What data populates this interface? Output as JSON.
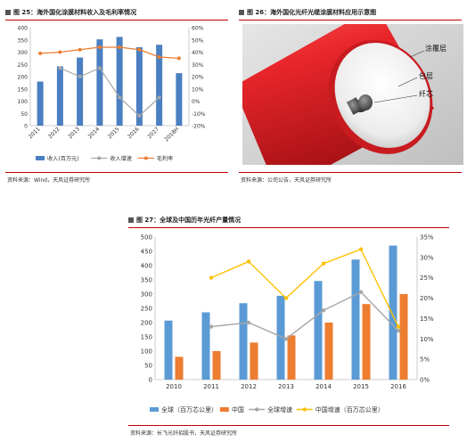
{
  "fig25": {
    "title": "图 25：海外国化涂膜材料收入及毛利率情况",
    "source": "资料来源：Wind，天风证券研究所"
  },
  "fig26": {
    "title": "图 26：海外国化光纤光缆涂膜材料应用示意图",
    "source": "资料来源：公司公告，天风证券研究所",
    "labels": {
      "coating": "涂覆层",
      "cladding": "包层",
      "core": "纤芯"
    },
    "colors": {
      "coating": "#e8262b",
      "cladding": "#f2f2f2",
      "core": "#6a6a6a",
      "background": "#d4d4d4"
    }
  },
  "fig27": {
    "title": "图 27：全球及中国历年光纤产量情况",
    "source": "资料来源：长飞光纤招股书，天风证券研究所"
  },
  "chart_data": [
    {
      "type": "bar",
      "categories": [
        "2011",
        "2012",
        "2013",
        "2014",
        "2015",
        "2016",
        "2017",
        "2018H"
      ],
      "series": [
        {
          "name": "收入(百万元)",
          "kind": "bar",
          "axis": "left",
          "color": "#4a7fc1",
          "values": [
            180,
            242,
            278,
            352,
            362,
            320,
            330,
            214
          ]
        },
        {
          "name": "收入增速",
          "kind": "line",
          "axis": "right",
          "color": "#a6a6a6",
          "values": [
            null,
            0.27,
            0.2,
            0.27,
            0.03,
            -0.12,
            0.03,
            null
          ]
        },
        {
          "name": "毛利率",
          "kind": "line",
          "axis": "right",
          "color": "#ed7d31",
          "values": [
            0.39,
            0.4,
            0.42,
            0.44,
            0.44,
            0.42,
            0.36,
            0.35
          ]
        }
      ],
      "yticks": [
        "0",
        "50",
        "100",
        "150",
        "200",
        "250",
        "300",
        "350",
        "400"
      ],
      "y2ticks": [
        "-20%",
        "-10%",
        "0%",
        "10%",
        "20%",
        "30%",
        "40%",
        "50%",
        "60%"
      ],
      "ylim": [
        0,
        400
      ],
      "y2lim": [
        -0.2,
        0.6
      ],
      "legend": "bottom",
      "grid": false
    },
    {
      "type": "bar",
      "categories": [
        "2010",
        "2011",
        "2012",
        "2013",
        "2014",
        "2015",
        "2016"
      ],
      "series": [
        {
          "name": "全球（百万芯公里）",
          "kind": "bar",
          "axis": "left",
          "color": "#5b9bd5",
          "values": [
            207,
            236,
            268,
            294,
            346,
            421,
            470
          ]
        },
        {
          "name": "中国",
          "kind": "bar",
          "axis": "left",
          "color": "#ed7d31",
          "values": [
            80,
            100,
            130,
            155,
            200,
            265,
            300
          ]
        },
        {
          "name": "全球增速",
          "kind": "line",
          "axis": "right",
          "color": "#a6a6a6",
          "values": [
            null,
            0.13,
            0.14,
            0.1,
            0.17,
            0.215,
            0.12
          ]
        },
        {
          "name": "中国增速（百万芯公里）",
          "kind": "line",
          "axis": "right",
          "color": "#ffc000",
          "values": [
            null,
            0.25,
            0.29,
            0.2,
            0.285,
            0.32,
            0.13
          ]
        }
      ],
      "yticks": [
        "0",
        "50",
        "100",
        "150",
        "200",
        "250",
        "300",
        "350",
        "400",
        "450",
        "500"
      ],
      "y2ticks": [
        "0%",
        "5%",
        "10%",
        "15%",
        "20%",
        "25%",
        "30%",
        "35%"
      ],
      "ylim": [
        0,
        500
      ],
      "y2lim": [
        0,
        0.35
      ],
      "legend": "bottom",
      "grid": false
    }
  ]
}
